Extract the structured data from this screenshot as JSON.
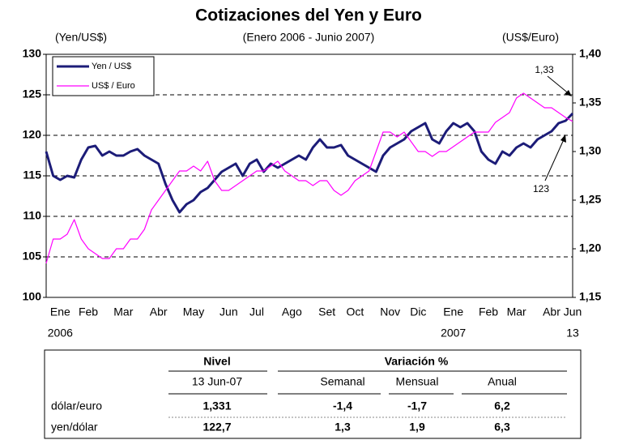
{
  "chart_data": {
    "type": "line",
    "title": "Cotizaciones del Yen y Euro",
    "subtitle": "(Enero 2006 - Junio 2007)",
    "y_label": "(Yen/US$)",
    "y2_label": "(US$/Euro)",
    "categories": [
      null,
      null,
      "Ene",
      null,
      null,
      null,
      "Feb",
      null,
      null,
      null,
      null,
      "Mar",
      null,
      null,
      null,
      null,
      "Abr",
      null,
      null,
      null,
      null,
      "May",
      null,
      null,
      null,
      null,
      "Jun",
      null,
      null,
      null,
      "Jul",
      null,
      null,
      null,
      null,
      "Ago",
      null,
      null,
      null,
      null,
      "Set",
      null,
      null,
      null,
      "Oct",
      null,
      null,
      null,
      null,
      "Nov",
      null,
      null,
      null,
      "Dic",
      null,
      null,
      null,
      null,
      "Ene",
      null,
      null,
      null,
      null,
      "Feb",
      null,
      null,
      null,
      "Mar",
      null,
      null,
      null,
      null,
      "Abr",
      null,
      null,
      "Jun"
    ],
    "categories_line2": [
      null,
      null,
      "2006",
      null,
      null,
      null,
      null,
      null,
      null,
      null,
      null,
      null,
      null,
      null,
      null,
      null,
      null,
      null,
      null,
      null,
      null,
      null,
      null,
      null,
      null,
      null,
      null,
      null,
      null,
      null,
      null,
      null,
      null,
      null,
      null,
      null,
      null,
      null,
      null,
      null,
      null,
      null,
      null,
      null,
      null,
      null,
      null,
      null,
      null,
      null,
      null,
      null,
      null,
      null,
      null,
      null,
      null,
      null,
      "2007",
      null,
      null,
      null,
      null,
      null,
      null,
      null,
      null,
      null,
      null,
      null,
      null,
      null,
      null,
      null,
      null,
      "13"
    ],
    "series": [
      {
        "name": "Yen / US$",
        "color": "#1c1c78",
        "line_width": 3,
        "values": [
          118,
          115,
          114.5,
          115,
          114.8,
          117,
          118.5,
          118.7,
          117.5,
          118,
          117.5,
          117.5,
          118,
          118.3,
          117.5,
          117,
          116.5,
          114,
          112,
          110.5,
          111.5,
          112,
          113,
          113.5,
          114.5,
          115.5,
          116,
          116.5,
          115,
          116.5,
          117,
          115.5,
          116.5,
          116,
          116.5,
          117,
          117.5,
          117,
          118.5,
          119.5,
          118.5,
          118.5,
          118.8,
          117.5,
          117,
          116.5,
          116,
          115.5,
          117.5,
          118.5,
          119,
          119.5,
          120.5,
          121,
          121.5,
          119.5,
          119,
          120.5,
          121.5,
          121,
          121.5,
          120.5,
          118,
          117,
          116.5,
          118,
          117.5,
          118.5,
          119,
          118.5,
          119.5,
          120,
          120.5,
          121.5,
          121.8,
          122.7
        ]
      },
      {
        "name": "US$ / Euro",
        "color": "#ff00ff",
        "line_width": 1.2,
        "axis": "y2",
        "values": [
          1.185,
          1.21,
          1.21,
          1.215,
          1.23,
          1.21,
          1.2,
          1.195,
          1.19,
          1.19,
          1.2,
          1.2,
          1.21,
          1.21,
          1.22,
          1.24,
          1.25,
          1.26,
          1.27,
          1.28,
          1.28,
          1.285,
          1.28,
          1.29,
          1.27,
          1.26,
          1.26,
          1.265,
          1.27,
          1.275,
          1.28,
          1.28,
          1.285,
          1.29,
          1.28,
          1.275,
          1.27,
          1.27,
          1.265,
          1.27,
          1.27,
          1.26,
          1.255,
          1.26,
          1.27,
          1.275,
          1.28,
          1.3,
          1.32,
          1.32,
          1.315,
          1.32,
          1.31,
          1.3,
          1.3,
          1.295,
          1.3,
          1.3,
          1.305,
          1.31,
          1.315,
          1.32,
          1.32,
          1.32,
          1.33,
          1.335,
          1.34,
          1.355,
          1.36,
          1.355,
          1.35,
          1.345,
          1.345,
          1.34,
          1.335,
          1.331
        ]
      }
    ],
    "ylim": [
      100,
      130
    ],
    "yticks": [
      100,
      105,
      110,
      115,
      120,
      125,
      130
    ],
    "y2lim": [
      1.15,
      1.4
    ],
    "y2ticks": [
      {
        "value": 1.15,
        "label": "1,15"
      },
      {
        "value": 1.2,
        "label": "1,20"
      },
      {
        "value": 1.25,
        "label": "1,25"
      },
      {
        "value": 1.3,
        "label": "1,30"
      },
      {
        "value": 1.35,
        "label": "1,35"
      },
      {
        "value": 1.4,
        "label": "1,40"
      }
    ],
    "grid": true,
    "legend": "top-left",
    "annotations": [
      "1,33",
      "123"
    ]
  },
  "table": {
    "header": [
      "Nivel",
      "Variación %"
    ],
    "subheader": [
      "13 Jun-07",
      "Semanal",
      "Mensual",
      "Anual"
    ],
    "rows": [
      [
        "dólar/euro",
        "1,331",
        "-1,4",
        "-1,7",
        "6,2"
      ],
      [
        "yen/dólar",
        "122,7",
        "1,3",
        "1,9",
        "6,3"
      ]
    ]
  }
}
